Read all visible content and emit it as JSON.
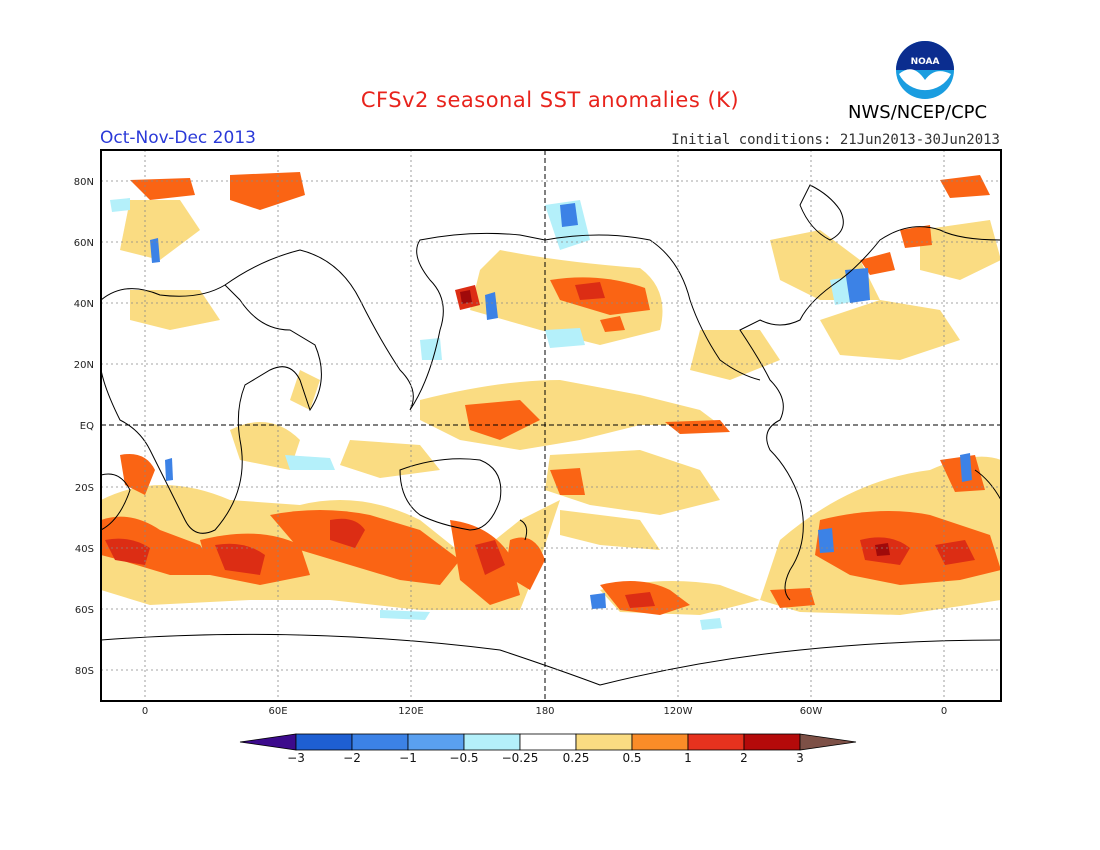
{
  "header": {
    "title": "CFSv2 seasonal SST anomalies (K)",
    "season": "Oct-Nov-Dec 2013",
    "initial_conditions": "Initial conditions: 21Jun2013-30Jun2013",
    "organization": "NWS/NCEP/CPC",
    "logo_text": "NOAA"
  },
  "map": {
    "lat_labels": [
      "80N",
      "60N",
      "40N",
      "20N",
      "EQ",
      "20S",
      "40S",
      "60S",
      "80S"
    ],
    "lon_labels": [
      "0",
      "60E",
      "120E",
      "180",
      "120W",
      "60W",
      "0"
    ],
    "reference_lines": [
      "equator",
      "dateline"
    ]
  },
  "colorbar": {
    "labels": [
      "−3",
      "−2",
      "−1",
      "−0.5",
      "−0.25",
      "0.25",
      "0.5",
      "1",
      "2",
      "3"
    ],
    "colors": [
      "#3c0a8c",
      "#1e5fd2",
      "#3c82e6",
      "#5aa0f0",
      "#b4f0fa",
      "#ffffff",
      "#fadc82",
      "#fa8c28",
      "#e6321e",
      "#b40a0a",
      "#7d5046"
    ]
  },
  "anomaly_colors": {
    "weak_warm": "#fadc82",
    "warm": "#fa6414",
    "strong_warm": "#dc2d14",
    "very_warm": "#a00a0a",
    "weak_cool": "#b4f0fa",
    "cool": "#3c82e6"
  }
}
